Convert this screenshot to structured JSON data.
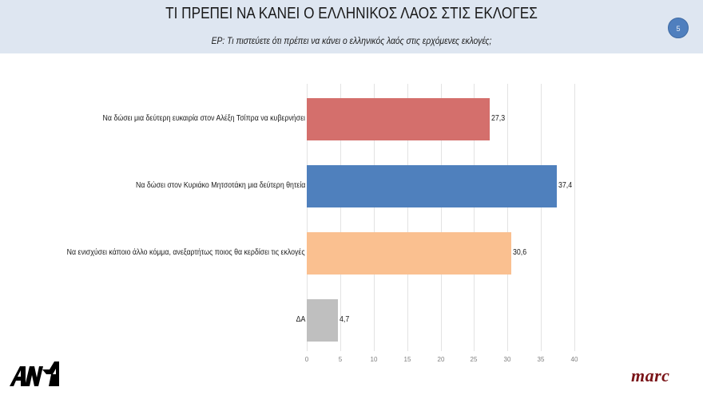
{
  "header": {
    "title": "ΤΙ ΠΡΕΠΕΙ ΝΑ ΚΑΝΕΙ Ο ΕΛΛΗΝΙΚΟΣ ΛΑΟΣ ΣΤΙΣ ΕΚΛΟΓΕΣ",
    "subtitle": "ΕΡ: Τι πιστεύετε ότι πρέπει να κάνει ο ελληνικός λαός στις ερχόμενες εκλογές;",
    "page_number": "5"
  },
  "colors": {
    "header_bg": "#dee6f1",
    "badge": "#4f7fbe",
    "bar_tsipras": "#d46f6c",
    "bar_mitsotakis": "#4f80bd",
    "bar_other": "#fac090",
    "bar_na": "#bfbfbf",
    "marc_logo": "#7a1418"
  },
  "chart_data": {
    "type": "bar",
    "orientation": "horizontal",
    "title": "ΤΙ ΠΡΕΠΕΙ ΝΑ ΚΑΝΕΙ Ο ΕΛΛΗΝΙΚΟΣ ΛΑΟΣ ΣΤΙΣ ΕΚΛΟΓΕΣ",
    "subtitle": "ΕΡ: Τι πιστεύετε ότι πρέπει να κάνει ο ελληνικός λαός στις ερχόμενες εκλογές;",
    "categories": [
      "Να δώσει μια δεύτερη ευκαιρία στον Αλέξη Τσίπρα να κυβερνήσει",
      "Να δώσει στον Κυριάκο Μητσοτάκη μια δεύτερη θητεία",
      "Να ενισχύσει κάποιο άλλο κόμμα, ανεξαρτήτως ποιος θα κερδίσει τις εκλογές",
      "ΔΑ"
    ],
    "values": [
      27.3,
      37.4,
      30.6,
      4.7
    ],
    "value_labels": [
      "27,3",
      "37,4",
      "30,6",
      "4,7"
    ],
    "bar_colors": [
      "#d46f6c",
      "#4f80bd",
      "#fac090",
      "#bfbfbf"
    ],
    "xlabel": "",
    "ylabel": "",
    "xlim": [
      0,
      40
    ],
    "xticks": [
      "0",
      "5",
      "10",
      "15",
      "20",
      "25",
      "30",
      "35",
      "40"
    ],
    "grid": true,
    "legend": null
  },
  "logos": {
    "left": "ANT1",
    "right": "marc"
  }
}
